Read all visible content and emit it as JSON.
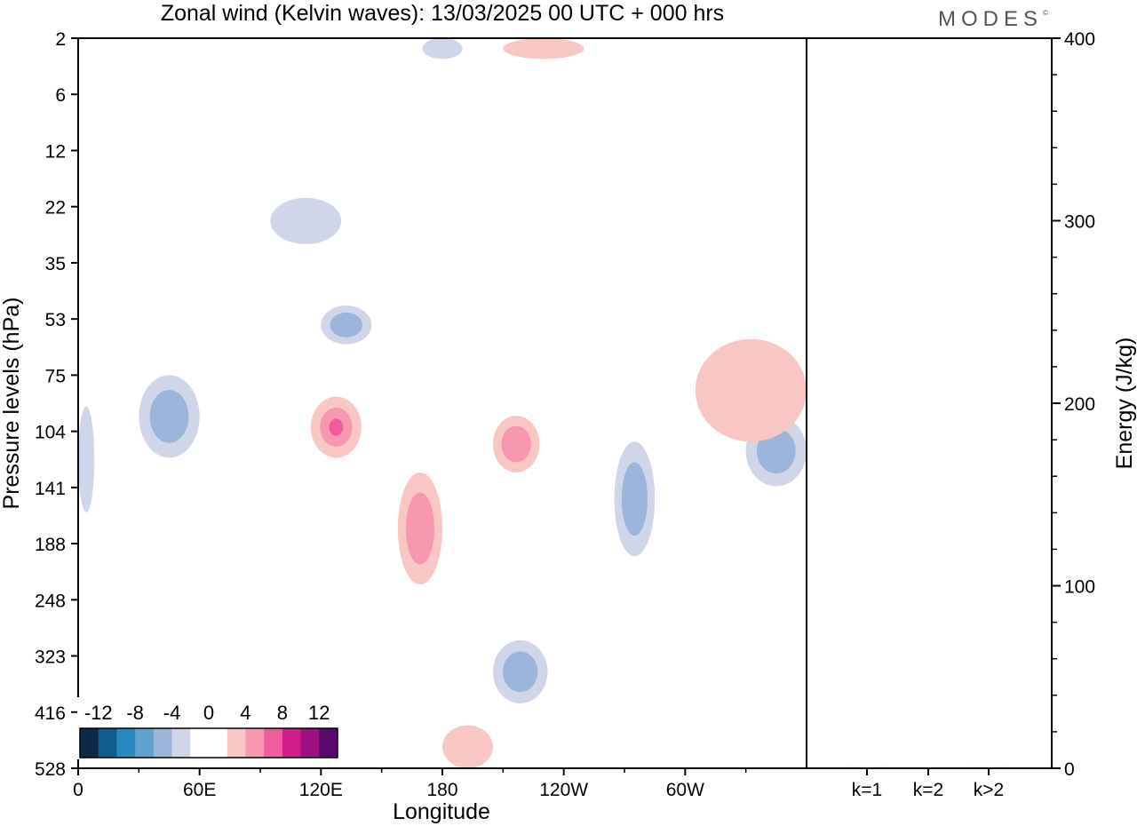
{
  "header": {
    "title": "Zonal wind (Kelvin waves):  13/03/2025  00 UTC  + 000 hrs",
    "logo_text": "MODES",
    "logo_mark": "©"
  },
  "chart_data": [
    {
      "type": "heatmap",
      "title": "Zonal wind (Kelvin waves):  13/03/2025  00 UTC  + 000 hrs",
      "xlabel": "Longitude",
      "ylabel": "Pressure levels (hPa)",
      "x_range_deg": [
        0,
        360
      ],
      "x_ticks": [
        "0",
        "60E",
        "120E",
        "180",
        "120W",
        "60W"
      ],
      "y_ticks": [
        "2",
        "6",
        "12",
        "22",
        "35",
        "53",
        "75",
        "104",
        "141",
        "188",
        "248",
        "323",
        "416",
        "528"
      ],
      "y_scale": "pressure levels, top = 2 hPa, bottom = 528 hPa",
      "colorbar": {
        "tick_labels": [
          "-12",
          "-8",
          "-4",
          "0",
          "4",
          "8",
          "12"
        ],
        "colors": [
          "#0d2a45",
          "#0e5d8c",
          "#2a88c0",
          "#5fa2cf",
          "#9db5d8",
          "#d0d5e8",
          "#ffffff",
          "#ffffff",
          "#f8c6c4",
          "#f797b0",
          "#ef5d9c",
          "#d11d8a",
          "#9d1283",
          "#5a0a6e"
        ]
      },
      "regions": [
        {
          "sign": "negative",
          "level": 1,
          "lon": [
            0,
            8
          ],
          "hpa": [
            90,
            160
          ]
        },
        {
          "sign": "negative",
          "level": 2,
          "lon": [
            30,
            60
          ],
          "hpa": [
            75,
            120
          ]
        },
        {
          "sign": "negative",
          "level": 2,
          "lon": [
            120,
            145
          ],
          "hpa": [
            48,
            62
          ]
        },
        {
          "sign": "negative",
          "level": 1,
          "lon": [
            95,
            130
          ],
          "hpa": [
            20,
            30
          ]
        },
        {
          "sign": "negative",
          "level": 1,
          "lon": [
            170,
            190
          ],
          "hpa": [
            2,
            3
          ]
        },
        {
          "sign": "negative",
          "level": 2,
          "lon": [
            265,
            285
          ],
          "hpa": [
            110,
            200
          ]
        },
        {
          "sign": "negative",
          "level": 2,
          "lon": [
            330,
            360
          ],
          "hpa": [
            95,
            140
          ]
        },
        {
          "sign": "negative",
          "level": 2,
          "lon": [
            205,
            232
          ],
          "hpa": [
            300,
            400
          ]
        },
        {
          "sign": "positive",
          "level": 3,
          "lon": [
            115,
            140
          ],
          "hpa": [
            85,
            120
          ]
        },
        {
          "sign": "positive",
          "level": 2,
          "lon": [
            158,
            180
          ],
          "hpa": [
            130,
            230
          ]
        },
        {
          "sign": "positive",
          "level": 2,
          "lon": [
            205,
            228
          ],
          "hpa": [
            95,
            130
          ]
        },
        {
          "sign": "positive",
          "level": 1,
          "lon": [
            210,
            250
          ],
          "hpa": [
            2,
            3
          ]
        },
        {
          "sign": "positive",
          "level": 1,
          "lon": [
            305,
            360
          ],
          "hpa": [
            60,
            110
          ]
        },
        {
          "sign": "positive",
          "level": 1,
          "lon": [
            180,
            205
          ],
          "hpa": [
            440,
            528
          ]
        }
      ]
    },
    {
      "type": "bar",
      "ylabel": "Energy (J/kg)",
      "categories": [
        "k=1",
        "k=2",
        "k>2"
      ],
      "values": [
        0.5,
        0,
        0.5
      ],
      "ylim": [
        0,
        400
      ],
      "y_ticks": [
        "0",
        "100",
        "200",
        "300",
        "400"
      ]
    }
  ]
}
